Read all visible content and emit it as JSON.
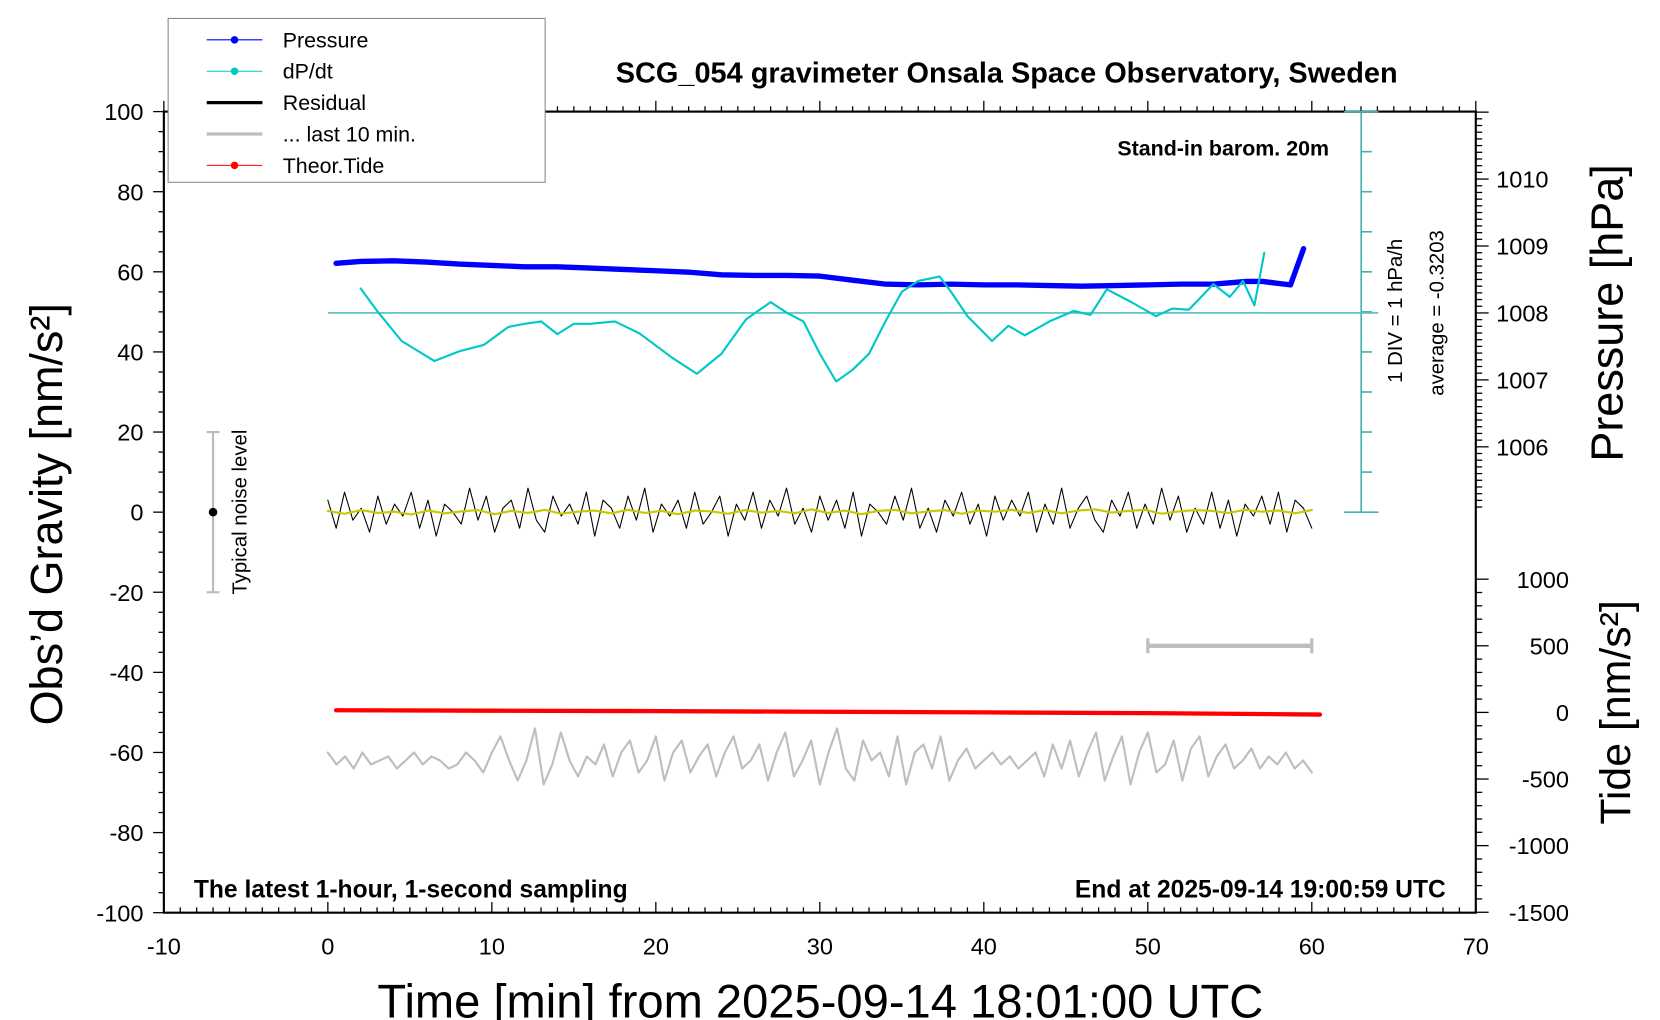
{
  "chart_data": {
    "type": "line",
    "title": "SCG_054 gravimeter Onsala Space Observatory, Sweden",
    "xlabel": "Time [min] from 2025-09-14 18:01:00 UTC",
    "ylabel_left": "Obs’d Gravity [nm/s²]",
    "ylabel_right_pressure": "Pressure [hPa]",
    "ylabel_right_tide": "Tide [nm/s²]",
    "xlim": [
      -10,
      70
    ],
    "ylim_left": [
      -100,
      100
    ],
    "x_ticks": [
      "-10",
      "0",
      "10",
      "20",
      "30",
      "40",
      "50",
      "60",
      "70"
    ],
    "y_ticks_left": [
      "100",
      "80",
      "60",
      "40",
      "20",
      "0",
      "-20",
      "-40",
      "-60",
      "-80",
      "-100"
    ],
    "pressure_ticks": [
      "1010",
      "1009",
      "1008",
      "1007",
      "1006"
    ],
    "tide_ticks": [
      "1000",
      "500",
      "0",
      "-500",
      "-1000",
      "-1500"
    ],
    "grid": false,
    "legend_position": "top-left",
    "annotations": {
      "barometer": "Stand-in barom. 20m",
      "sampling": "The latest 1-hour, 1-second sampling",
      "end_time": "End at 2025-09-14 19:00:59 UTC",
      "div_scale": "1 DIV = 1 hPa/h",
      "average": "average = -0.3203",
      "noise": "Typical noise level"
    },
    "noise_level": {
      "x": -7,
      "center": 0,
      "range": [
        -20,
        20
      ]
    },
    "last10_marker": {
      "x": [
        50,
        60
      ],
      "tide": 500
    },
    "legend": [
      {
        "label": "Pressure",
        "color": "#0000ff",
        "marker": true
      },
      {
        "label": "dP/dt",
        "color": "#00c8c8",
        "marker": true
      },
      {
        "label": "Residual",
        "color": "#000000",
        "marker": false
      },
      {
        "label": "... last 10 min.",
        "color": "#bebebe",
        "marker": false
      },
      {
        "label": "Theor.Tide",
        "color": "#ff0000",
        "marker": true
      }
    ],
    "series": [
      {
        "name": "Pressure",
        "axis": "pressure_hPa",
        "color": "#0000ff",
        "x": [
          0.5,
          2,
          4,
          6,
          8,
          10,
          12,
          14,
          16,
          18,
          20,
          22,
          24,
          26,
          28,
          30,
          32,
          34,
          36,
          38,
          40,
          42,
          44,
          46,
          48,
          50,
          52,
          54,
          55,
          56,
          57,
          58,
          58.7,
          59.5
        ],
        "y": [
          1008.74,
          1008.77,
          1008.78,
          1008.76,
          1008.73,
          1008.71,
          1008.69,
          1008.69,
          1008.67,
          1008.65,
          1008.63,
          1008.61,
          1008.57,
          1008.56,
          1008.56,
          1008.55,
          1008.49,
          1008.43,
          1008.42,
          1008.43,
          1008.42,
          1008.42,
          1008.41,
          1008.4,
          1008.41,
          1008.42,
          1008.43,
          1008.43,
          1008.45,
          1008.47,
          1008.47,
          1008.44,
          1008.42,
          1008.96
        ]
      },
      {
        "name": "dP/dt",
        "axis": "dpdt_hPa_per_h",
        "color": "#00c8c8",
        "x": [
          2,
          3,
          4.5,
          6.5,
          8,
          9.5,
          11,
          12,
          13,
          14,
          15,
          16,
          17.5,
          19,
          21,
          22.5,
          24,
          25.5,
          27,
          28,
          29,
          30,
          31,
          32,
          33,
          34,
          35,
          36,
          37.3,
          38,
          39,
          40.5,
          41.5,
          42.5,
          44,
          45.5,
          46.5,
          47.5,
          49,
          50.5,
          51.5,
          52.5,
          54,
          55,
          55.8,
          56.5,
          57.1
        ],
        "y": [
          0.61,
          0.05,
          -0.7,
          -1.2,
          -0.96,
          -0.8,
          -0.35,
          -0.27,
          -0.21,
          -0.53,
          -0.27,
          -0.27,
          -0.21,
          -0.51,
          -1.12,
          -1.52,
          -1.02,
          -0.16,
          0.27,
          0.0,
          -0.21,
          -1.02,
          -1.71,
          -1.42,
          -1.02,
          -0.21,
          0.53,
          0.8,
          0.91,
          0.53,
          -0.08,
          -0.7,
          -0.32,
          -0.56,
          -0.21,
          0.05,
          -0.05,
          0.59,
          0.27,
          -0.08,
          0.11,
          0.08,
          0.72,
          0.4,
          0.8,
          0.19,
          1.5
        ]
      },
      {
        "name": "Residual",
        "axis": "gravity",
        "color": "#000000",
        "x_range": [
          0,
          60
        ],
        "y": [
          3,
          -4,
          5,
          -2,
          1,
          -5,
          4,
          -3,
          2,
          -1,
          5,
          -4,
          3,
          -6,
          2,
          0,
          -3,
          6,
          -2,
          4,
          -5,
          1,
          3,
          -4,
          6,
          -2,
          -5,
          4,
          -1,
          2,
          -3,
          5,
          -6,
          3,
          1,
          -4,
          4,
          -2,
          6,
          -5,
          2,
          -1,
          3,
          -4,
          5,
          -3,
          0,
          4,
          -6,
          2,
          -2,
          5,
          -4,
          3,
          -1,
          6,
          -3,
          1,
          -5,
          4,
          -2,
          3,
          -4,
          5,
          -6,
          2,
          0,
          -3,
          4,
          -2,
          6,
          -4,
          1,
          -5,
          3,
          -1,
          5,
          -3,
          2,
          -6,
          4,
          -2,
          3,
          -1,
          5,
          -5,
          2,
          -3,
          6,
          -4,
          1,
          4,
          -2,
          -5,
          3,
          -1,
          5,
          -4,
          2,
          -3,
          6,
          -2,
          4,
          -5,
          1,
          -3,
          5,
          -4,
          3,
          -6,
          2,
          -1,
          4,
          -3,
          5,
          -5,
          3,
          1,
          -4
        ],
        "smoothed_color": "#c8c800",
        "smoothed": [
          0.3,
          -0.4,
          0.5,
          -0.2,
          0.1,
          -0.6,
          0.4,
          -0.3,
          0.2,
          0.5,
          -0.5,
          0.3,
          -0.2,
          0.6,
          -0.4,
          0.1,
          0.4,
          -0.3,
          0.6,
          -0.2,
          0.3,
          -0.5,
          0.4,
          0.2,
          -0.4,
          0.5,
          -0.1,
          0.3,
          -0.3,
          0.7,
          -0.2,
          0.4,
          -0.5,
          0.3,
          0.6,
          -0.3,
          0.2,
          0.5,
          -0.4,
          0.4,
          0.1,
          0.6,
          -0.2,
          0.5,
          -0.3,
          0.4,
          0.7,
          -0.1,
          0.3,
          0.6,
          -0.4,
          0.2,
          0.5,
          0.3,
          -0.2,
          0.6,
          0.1,
          0.4,
          -0.3,
          0.5
        ]
      },
      {
        "name": "... last 10 min.",
        "axis": "gravity",
        "color": "#bebebe",
        "x_range": [
          0,
          60
        ],
        "y": [
          -60,
          -63,
          -61,
          -64,
          -60,
          -63,
          -62,
          -61,
          -64,
          -62,
          -60,
          -63,
          -61,
          -62,
          -64,
          -63,
          -60,
          -62,
          -65,
          -60,
          -56,
          -62,
          -67,
          -62,
          -54,
          -68,
          -63,
          -55,
          -62,
          -66,
          -61,
          -63,
          -58,
          -66,
          -60,
          -57,
          -65,
          -62,
          -56,
          -67,
          -60,
          -57,
          -65,
          -61,
          -58,
          -66,
          -60,
          -56,
          -64,
          -62,
          -58,
          -67,
          -60,
          -55,
          -66,
          -62,
          -57,
          -68,
          -60,
          -54,
          -64,
          -67,
          -57,
          -62,
          -60,
          -66,
          -56,
          -68,
          -60,
          -58,
          -64,
          -56,
          -67,
          -62,
          -59,
          -64,
          -62,
          -60,
          -63,
          -61,
          -64,
          -62,
          -60,
          -66,
          -58,
          -64,
          -57,
          -66,
          -60,
          -55,
          -67,
          -61,
          -56,
          -68,
          -60,
          -55,
          -65,
          -63,
          -57,
          -67,
          -59,
          -56,
          -66,
          -61,
          -58,
          -64,
          -62,
          -59,
          -64,
          -61,
          -63,
          -60,
          -64,
          -62,
          -65
        ]
      },
      {
        "name": "Theor.Tide",
        "axis": "tide",
        "color": "#ff0000",
        "x": [
          0.5,
          10,
          20,
          30,
          40,
          50,
          60.5
        ],
        "y": [
          16,
          13,
          10,
          5,
          0,
          -6,
          -16
        ]
      }
    ]
  }
}
